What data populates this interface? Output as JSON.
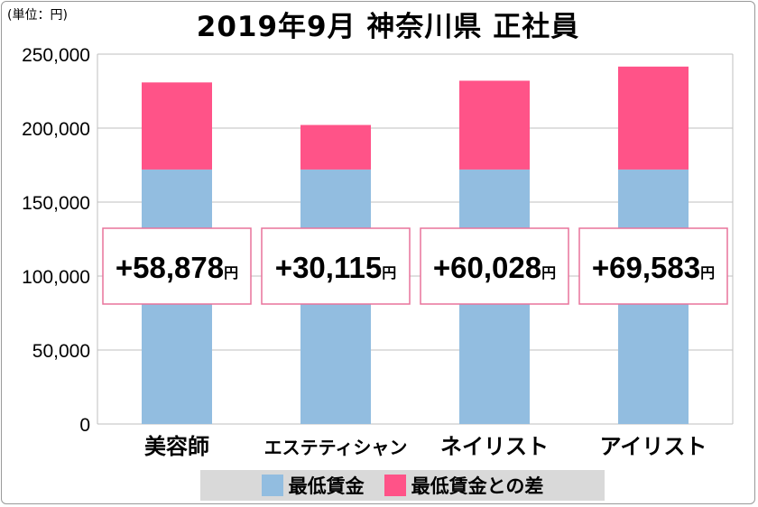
{
  "chart_data": {
    "type": "bar",
    "stacked": true,
    "title": "2019年9月 神奈川県 正社員",
    "unit_label": "(単位：円)",
    "categories": [
      "美容師",
      "エステティシャン",
      "ネイリスト",
      "アイリスト"
    ],
    "ylim": [
      0,
      250000
    ],
    "yticks": [
      0,
      50000,
      100000,
      150000,
      200000,
      250000
    ],
    "ytick_labels": [
      "0",
      "50,000",
      "100,000",
      "150,000",
      "200,000",
      "250,000"
    ],
    "grid": true,
    "legend_position": "bottom",
    "series": [
      {
        "name": "最低賃金",
        "color": "#92bde0",
        "values": [
          172000,
          172000,
          172000,
          172000
        ]
      },
      {
        "name": "最低賃金との差",
        "color": "#ff5388",
        "values": [
          58878,
          30115,
          60028,
          69583
        ]
      }
    ],
    "annotations": [
      {
        "value": "+58,878",
        "unit": "円"
      },
      {
        "value": "+30,115",
        "unit": "円"
      },
      {
        "value": "+60,028",
        "unit": "円"
      },
      {
        "value": "+69,583",
        "unit": "円"
      }
    ]
  }
}
